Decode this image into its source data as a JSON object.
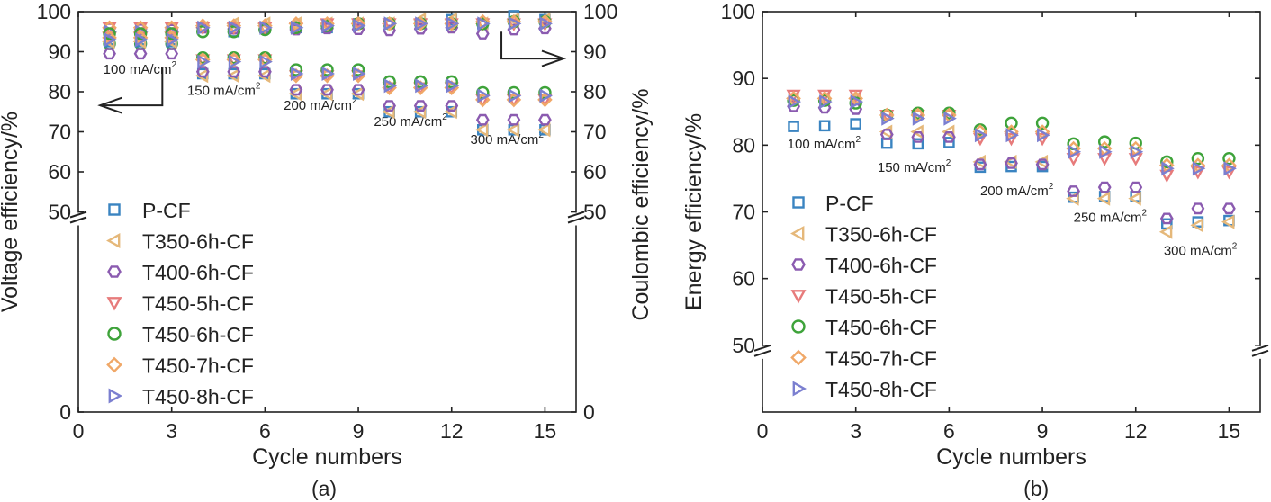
{
  "chart_data": [
    {
      "type": "scatter",
      "panel_label": "(a)",
      "xlabel": "Cycle numbers",
      "ylabel_left": "Voltage efficiency/%",
      "ylabel_right": "Coulombic efficiency/%",
      "xlim": [
        0,
        16
      ],
      "xticks": [
        0,
        3,
        6,
        9,
        12,
        15
      ],
      "ylim": [
        0,
        100
      ],
      "yticks": [
        0,
        50,
        60,
        70,
        80,
        90,
        100
      ],
      "axis_break": 50,
      "annotations": [
        "100 mA/cm",
        "150 mA/cm",
        "200 mA/cm",
        "250 mA/cm",
        "300 mA/cm"
      ],
      "annotation_superscript": "2",
      "x": [
        1,
        2,
        3,
        4,
        5,
        6,
        7,
        8,
        9,
        10,
        11,
        12,
        13,
        14,
        15
      ],
      "series": [
        {
          "name": "P-CF",
          "axis": "right",
          "values": [
            93,
            93,
            93,
            96,
            95,
            96,
            96,
            96,
            97,
            97,
            97,
            98,
            97,
            99,
            98
          ]
        },
        {
          "name": "T350-6h-CF",
          "axis": "right",
          "values": [
            95,
            95,
            95,
            96,
            97,
            97,
            97,
            97,
            97,
            97,
            98,
            98,
            97,
            98,
            98
          ]
        },
        {
          "name": "T400-6h-CF",
          "axis": "right",
          "values": [
            95.8,
            95.6,
            95.5,
            96,
            95.7,
            95.6,
            95.5,
            95.8,
            95.6,
            95.3,
            95.7,
            96,
            94.5,
            95.5,
            95.8
          ]
        },
        {
          "name": "T450-5h-CF",
          "axis": "right",
          "values": [
            96,
            96,
            96,
            96,
            96,
            96,
            96,
            97,
            97,
            97,
            97,
            97,
            97,
            97,
            97
          ]
        },
        {
          "name": "T450-6h-CF",
          "axis": "right",
          "values": [
            92,
            92,
            92,
            95,
            95,
            95.5,
            96,
            96.5,
            97,
            97,
            97,
            97,
            97,
            97.5,
            97.5
          ]
        },
        {
          "name": "T450-7h-CF",
          "axis": "right",
          "values": [
            96,
            96,
            96,
            96.5,
            96.5,
            96.5,
            97,
            97,
            97,
            97,
            97,
            97,
            97.5,
            97.5,
            97.5
          ]
        },
        {
          "name": "T450-8h-CF",
          "axis": "right",
          "values": [
            95,
            95,
            95,
            96,
            96,
            96,
            96,
            96.5,
            96.5,
            97,
            97,
            97,
            97,
            97,
            97
          ]
        },
        {
          "name": "P-CF",
          "axis": "left",
          "values": [
            92.5,
            92.5,
            92.5,
            84.5,
            84.5,
            84.5,
            79.5,
            79.5,
            79.5,
            75,
            75,
            75,
            70.5,
            70.5,
            70.5
          ]
        },
        {
          "name": "T350-6h-CF",
          "axis": "left",
          "values": [
            92.5,
            92.5,
            92.5,
            84,
            84,
            84,
            79.5,
            79.5,
            79.5,
            75,
            75,
            75,
            70.5,
            70.5,
            70.5
          ]
        },
        {
          "name": "T400-6h-CF",
          "axis": "left",
          "values": [
            89.5,
            89.5,
            89.5,
            85,
            85,
            85,
            80.5,
            80.5,
            80.5,
            76.5,
            76.5,
            76.5,
            73,
            73,
            73
          ]
        },
        {
          "name": "T450-5h-CF",
          "axis": "left",
          "values": [
            93.5,
            93.5,
            93.5,
            88,
            88,
            88,
            84,
            84,
            84,
            81,
            81,
            81,
            78,
            78,
            78
          ]
        },
        {
          "name": "T450-6h-CF",
          "axis": "left",
          "values": [
            94.5,
            94.5,
            94.5,
            88.5,
            88.5,
            88.5,
            85.5,
            85.5,
            85.5,
            82.5,
            82.5,
            82.5,
            79.8,
            79.8,
            79.8
          ]
        },
        {
          "name": "T450-7h-CF",
          "axis": "left",
          "values": [
            93.5,
            93.5,
            93.5,
            88,
            88,
            88,
            84,
            84,
            84,
            81,
            81,
            81,
            78,
            78,
            78
          ]
        },
        {
          "name": "T450-8h-CF",
          "axis": "left",
          "values": [
            93,
            93,
            93,
            87.5,
            87.5,
            87.5,
            84.5,
            84.5,
            84.5,
            81.5,
            81.5,
            81.5,
            79,
            79,
            79
          ]
        }
      ]
    },
    {
      "type": "scatter",
      "panel_label": "(b)",
      "xlabel": "Cycle numbers",
      "ylabel": "Energy efficiency/%",
      "xlim": [
        0,
        16
      ],
      "xticks": [
        0,
        3,
        6,
        9,
        12,
        15
      ],
      "ylim": [
        50,
        100
      ],
      "yticks": [
        50,
        60,
        70,
        80,
        90,
        100
      ],
      "axis_break": 50,
      "annotations": [
        "100 mA/cm",
        "150 mA/cm",
        "200 mA/cm",
        "250 mA/cm",
        "300 mA/cm"
      ],
      "annotation_superscript": "2",
      "x": [
        1,
        2,
        3,
        4,
        5,
        6,
        7,
        8,
        9,
        10,
        11,
        12,
        13,
        14,
        15
      ],
      "series": [
        {
          "name": "P-CF",
          "values": [
            82.8,
            82.9,
            83.2,
            80.3,
            80.2,
            80.4,
            76.7,
            76.8,
            76.8,
            72.2,
            72.3,
            72.3,
            68.2,
            68.5,
            68.7
          ]
        },
        {
          "name": "T350-6h-CF",
          "values": [
            87,
            87,
            87,
            82,
            82,
            82,
            77.5,
            77.5,
            77.5,
            72,
            72,
            72,
            67,
            68,
            68.5
          ]
        },
        {
          "name": "T400-6h-CF",
          "values": [
            85.8,
            85.6,
            85.4,
            81.6,
            81.2,
            81.2,
            77.1,
            77.3,
            77.1,
            73.1,
            73.7,
            73.7,
            69,
            70.5,
            70.5
          ]
        },
        {
          "name": "T450-5h-CF",
          "values": [
            87.5,
            87.5,
            87.5,
            84.5,
            84.5,
            84.5,
            81,
            81,
            81,
            78,
            78,
            78,
            75.5,
            76,
            76
          ]
        },
        {
          "name": "T450-6h-CF",
          "values": [
            86.7,
            86.7,
            86.3,
            84.5,
            84.8,
            84.8,
            82.3,
            83.3,
            83.3,
            80.2,
            80.5,
            80.3,
            77.5,
            78,
            78
          ]
        },
        {
          "name": "T450-7h-CF",
          "values": [
            87,
            87,
            87,
            84.5,
            84.5,
            84.5,
            82,
            82,
            82,
            79.5,
            79.5,
            79.5,
            77,
            77,
            77
          ]
        },
        {
          "name": "T450-8h-CF",
          "values": [
            86.5,
            86.5,
            86.5,
            84,
            84,
            84,
            81.5,
            81.5,
            81.5,
            79,
            79,
            79,
            76.5,
            76.5,
            76.5
          ]
        }
      ]
    }
  ],
  "legend": [
    {
      "name": "P-CF",
      "marker": "square",
      "color": "#3a84c1"
    },
    {
      "name": "T350-6h-CF",
      "marker": "triangle-left",
      "color": "#e5b87a"
    },
    {
      "name": "T400-6h-CF",
      "marker": "hexagon",
      "color": "#8b5bb0"
    },
    {
      "name": "T450-5h-CF",
      "marker": "triangle-down",
      "color": "#e77b7b"
    },
    {
      "name": "T450-6h-CF",
      "marker": "circle",
      "color": "#3ea33a"
    },
    {
      "name": "T450-7h-CF",
      "marker": "diamond",
      "color": "#f0a868"
    },
    {
      "name": "T450-8h-CF",
      "marker": "triangle-right",
      "color": "#7b7fd0"
    }
  ]
}
